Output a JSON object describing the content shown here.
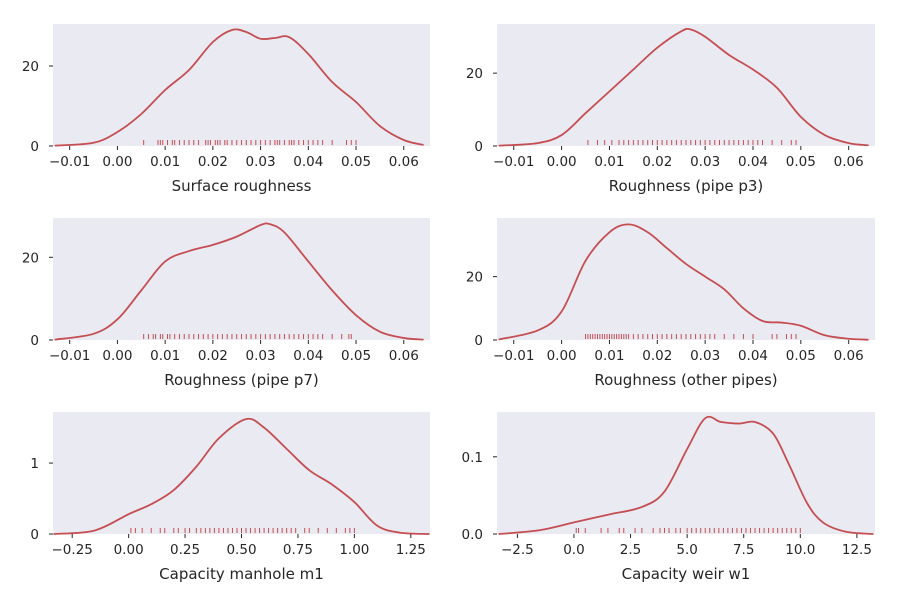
{
  "colors": {
    "line": "#c44e52",
    "rug": "#c44e52",
    "background": "#eaeaf2"
  },
  "chart_data": [
    {
      "type": "line",
      "xlabel": "Surface roughness",
      "xlim": [
        -0.0135,
        0.0655
      ],
      "ylim": [
        0,
        30.5
      ],
      "xticks": [
        -0.01,
        0.0,
        0.01,
        0.02,
        0.03,
        0.04,
        0.05,
        0.06
      ],
      "xtick_labels": [
        "−0.01",
        "0.00",
        "0.01",
        "0.02",
        "0.03",
        "0.04",
        "0.05",
        "0.06"
      ],
      "yticks": [
        0,
        20
      ],
      "ytick_labels": [
        "0",
        "20"
      ],
      "x": [
        -0.013,
        -0.005,
        0.0,
        0.005,
        0.01,
        0.015,
        0.02,
        0.024,
        0.027,
        0.03,
        0.033,
        0.036,
        0.04,
        0.045,
        0.05,
        0.055,
        0.06,
        0.064
      ],
      "y": [
        0.1,
        0.8,
        3.5,
        8,
        14,
        19,
        26,
        29,
        28.5,
        26.8,
        27,
        27.2,
        23,
        16,
        11,
        5,
        1.5,
        0.3
      ],
      "rug": [
        0.0055,
        0.0085,
        0.009,
        0.0095,
        0.0105,
        0.0115,
        0.012,
        0.013,
        0.014,
        0.015,
        0.016,
        0.017,
        0.0185,
        0.019,
        0.0195,
        0.0205,
        0.021,
        0.0215,
        0.0225,
        0.023,
        0.024,
        0.025,
        0.026,
        0.027,
        0.028,
        0.029,
        0.03,
        0.031,
        0.032,
        0.033,
        0.0335,
        0.034,
        0.035,
        0.036,
        0.0365,
        0.037,
        0.038,
        0.039,
        0.04,
        0.041,
        0.042,
        0.043,
        0.045,
        0.048,
        0.049,
        0.05
      ]
    },
    {
      "type": "line",
      "xlabel": "Roughness (pipe p3)",
      "xlim": [
        -0.0135,
        0.0655
      ],
      "ylim": [
        0,
        33.5
      ],
      "xticks": [
        -0.01,
        0.0,
        0.01,
        0.02,
        0.03,
        0.04,
        0.05,
        0.06
      ],
      "xtick_labels": [
        "−0.01",
        "0.00",
        "0.01",
        "0.02",
        "0.03",
        "0.04",
        "0.05",
        "0.06"
      ],
      "yticks": [
        0,
        20
      ],
      "ytick_labels": [
        "0",
        "20"
      ],
      "x": [
        -0.013,
        -0.005,
        0.0,
        0.005,
        0.01,
        0.015,
        0.02,
        0.025,
        0.027,
        0.03,
        0.035,
        0.04,
        0.045,
        0.05,
        0.055,
        0.06,
        0.064
      ],
      "y": [
        0.1,
        0.8,
        3,
        9,
        15,
        21,
        27,
        31.5,
        32,
        30,
        25,
        21,
        16,
        8,
        3,
        0.8,
        0.2
      ],
      "rug": [
        0.0055,
        0.0075,
        0.009,
        0.0105,
        0.012,
        0.013,
        0.014,
        0.015,
        0.016,
        0.017,
        0.018,
        0.019,
        0.02,
        0.021,
        0.022,
        0.023,
        0.024,
        0.025,
        0.026,
        0.027,
        0.028,
        0.029,
        0.03,
        0.031,
        0.032,
        0.033,
        0.034,
        0.035,
        0.036,
        0.037,
        0.038,
        0.039,
        0.04,
        0.041,
        0.042,
        0.044,
        0.046,
        0.048,
        0.049
      ]
    },
    {
      "type": "line",
      "xlabel": "Roughness (pipe p7)",
      "xlim": [
        -0.0135,
        0.0655
      ],
      "ylim": [
        0,
        29.5
      ],
      "xticks": [
        -0.01,
        0.0,
        0.01,
        0.02,
        0.03,
        0.04,
        0.05,
        0.06
      ],
      "xtick_labels": [
        "−0.01",
        "0.00",
        "0.01",
        "0.02",
        "0.03",
        "0.04",
        "0.05",
        "0.06"
      ],
      "yticks": [
        0,
        20
      ],
      "ytick_labels": [
        "0",
        "20"
      ],
      "x": [
        -0.013,
        -0.005,
        0.0,
        0.005,
        0.01,
        0.015,
        0.02,
        0.025,
        0.03,
        0.032,
        0.035,
        0.04,
        0.045,
        0.05,
        0.055,
        0.06,
        0.064
      ],
      "y": [
        0.1,
        1.5,
        5,
        12,
        19,
        21.5,
        23,
        25,
        27.8,
        28,
        26,
        19,
        12,
        6,
        2,
        0.5,
        0.1
      ],
      "rug": [
        0.0055,
        0.0065,
        0.0075,
        0.008,
        0.009,
        0.0095,
        0.0105,
        0.011,
        0.012,
        0.013,
        0.014,
        0.015,
        0.016,
        0.017,
        0.018,
        0.019,
        0.02,
        0.021,
        0.022,
        0.023,
        0.024,
        0.025,
        0.026,
        0.027,
        0.028,
        0.029,
        0.03,
        0.031,
        0.032,
        0.033,
        0.034,
        0.035,
        0.036,
        0.037,
        0.038,
        0.039,
        0.04,
        0.041,
        0.042,
        0.043,
        0.045,
        0.047,
        0.0485,
        0.049
      ]
    },
    {
      "type": "line",
      "xlabel": "Roughness (other pipes)",
      "xlim": [
        -0.0135,
        0.0655
      ],
      "ylim": [
        0,
        38.5
      ],
      "xticks": [
        -0.01,
        0.0,
        0.01,
        0.02,
        0.03,
        0.04,
        0.05,
        0.06
      ],
      "xtick_labels": [
        "−0.01",
        "0.00",
        "0.01",
        "0.02",
        "0.03",
        "0.04",
        "0.05",
        "0.06"
      ],
      "yticks": [
        0,
        20
      ],
      "ytick_labels": [
        "0",
        "20"
      ],
      "x": [
        -0.013,
        -0.005,
        0.0,
        0.005,
        0.01,
        0.014,
        0.018,
        0.022,
        0.026,
        0.03,
        0.034,
        0.038,
        0.042,
        0.046,
        0.05,
        0.055,
        0.06,
        0.064
      ],
      "y": [
        0.2,
        3,
        9,
        25,
        34,
        36.5,
        34,
        29,
        24,
        20,
        16,
        10,
        6,
        5.5,
        4.5,
        1.5,
        0.4,
        0.1
      ],
      "rug": [
        0.005,
        0.0055,
        0.006,
        0.0065,
        0.007,
        0.0075,
        0.008,
        0.0085,
        0.009,
        0.0095,
        0.01,
        0.0105,
        0.011,
        0.0115,
        0.012,
        0.0125,
        0.013,
        0.0135,
        0.014,
        0.015,
        0.016,
        0.017,
        0.018,
        0.019,
        0.02,
        0.021,
        0.022,
        0.023,
        0.024,
        0.025,
        0.026,
        0.027,
        0.028,
        0.029,
        0.03,
        0.031,
        0.032,
        0.034,
        0.036,
        0.038,
        0.04,
        0.044,
        0.045,
        0.047,
        0.048,
        0.049
      ]
    },
    {
      "type": "line",
      "xlabel": "Capacity manhole m1",
      "xlim": [
        -0.335,
        1.335
      ],
      "ylim": [
        0,
        1.72
      ],
      "xticks": [
        -0.25,
        0.0,
        0.25,
        0.5,
        0.75,
        1.0,
        1.25
      ],
      "xtick_labels": [
        "−0.25",
        "0.00",
        "0.25",
        "0.50",
        "0.75",
        "1.00",
        "1.25"
      ],
      "yticks": [
        0,
        1
      ],
      "ytick_labels": [
        "0",
        "1"
      ],
      "x": [
        -0.33,
        -0.15,
        0.0,
        0.1,
        0.2,
        0.3,
        0.4,
        0.52,
        0.6,
        0.7,
        0.8,
        0.9,
        1.0,
        1.1,
        1.2,
        1.33
      ],
      "y": [
        0.0,
        0.05,
        0.28,
        0.42,
        0.62,
        0.95,
        1.35,
        1.62,
        1.5,
        1.2,
        0.9,
        0.7,
        0.45,
        0.12,
        0.02,
        0.0
      ],
      "rug": [
        0.01,
        0.03,
        0.06,
        0.1,
        0.14,
        0.16,
        0.2,
        0.22,
        0.25,
        0.27,
        0.3,
        0.32,
        0.34,
        0.36,
        0.38,
        0.4,
        0.42,
        0.44,
        0.46,
        0.48,
        0.5,
        0.52,
        0.54,
        0.56,
        0.58,
        0.6,
        0.62,
        0.64,
        0.66,
        0.68,
        0.7,
        0.72,
        0.74,
        0.78,
        0.8,
        0.84,
        0.88,
        0.92,
        0.96,
        0.98,
        1.0
      ]
    },
    {
      "type": "line",
      "xlabel": "Capacity weir w1",
      "xlim": [
        -3.4,
        13.3
      ],
      "ylim": [
        0,
        0.158
      ],
      "xticks": [
        -2.5,
        0.0,
        2.5,
        5.0,
        7.5,
        10.0,
        12.5
      ],
      "xtick_labels": [
        "−2.5",
        "0.0",
        "2.5",
        "5.0",
        "7.5",
        "10.0",
        "12.5"
      ],
      "yticks": [
        0.0,
        0.1
      ],
      "ytick_labels": [
        "0.0",
        "0.1"
      ],
      "x": [
        -3.3,
        -1.5,
        0.0,
        1.5,
        3.0,
        4.0,
        5.0,
        5.8,
        6.5,
        7.3,
        8.0,
        8.8,
        9.5,
        10.3,
        11.0,
        12.0,
        13.2
      ],
      "y": [
        0.0,
        0.005,
        0.015,
        0.025,
        0.035,
        0.055,
        0.11,
        0.15,
        0.145,
        0.143,
        0.145,
        0.13,
        0.09,
        0.04,
        0.015,
        0.003,
        0.0
      ],
      "rug": [
        0.1,
        0.2,
        0.5,
        1.2,
        1.5,
        2.0,
        2.2,
        2.7,
        3.0,
        3.5,
        3.8,
        4.0,
        4.2,
        4.5,
        4.7,
        5.0,
        5.2,
        5.4,
        5.6,
        5.8,
        6.0,
        6.2,
        6.4,
        6.6,
        6.8,
        7.0,
        7.2,
        7.4,
        7.6,
        7.8,
        8.0,
        8.2,
        8.4,
        8.6,
        8.8,
        9.0,
        9.2,
        9.4,
        9.6,
        9.8,
        10.0
      ]
    }
  ]
}
